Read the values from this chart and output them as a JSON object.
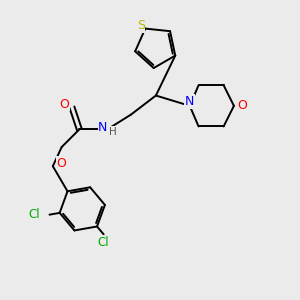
{
  "background_color": "#ebebeb",
  "bond_color": "#000000",
  "S_color": "#b8b800",
  "N_color": "#0000ff",
  "O_color": "#ff0000",
  "Cl_color": "#00aa00",
  "H_color": "#555555",
  "figsize": [
    3.0,
    3.0
  ],
  "dpi": 100,
  "xlim": [
    0,
    10
  ],
  "ylim": [
    0,
    10
  ]
}
